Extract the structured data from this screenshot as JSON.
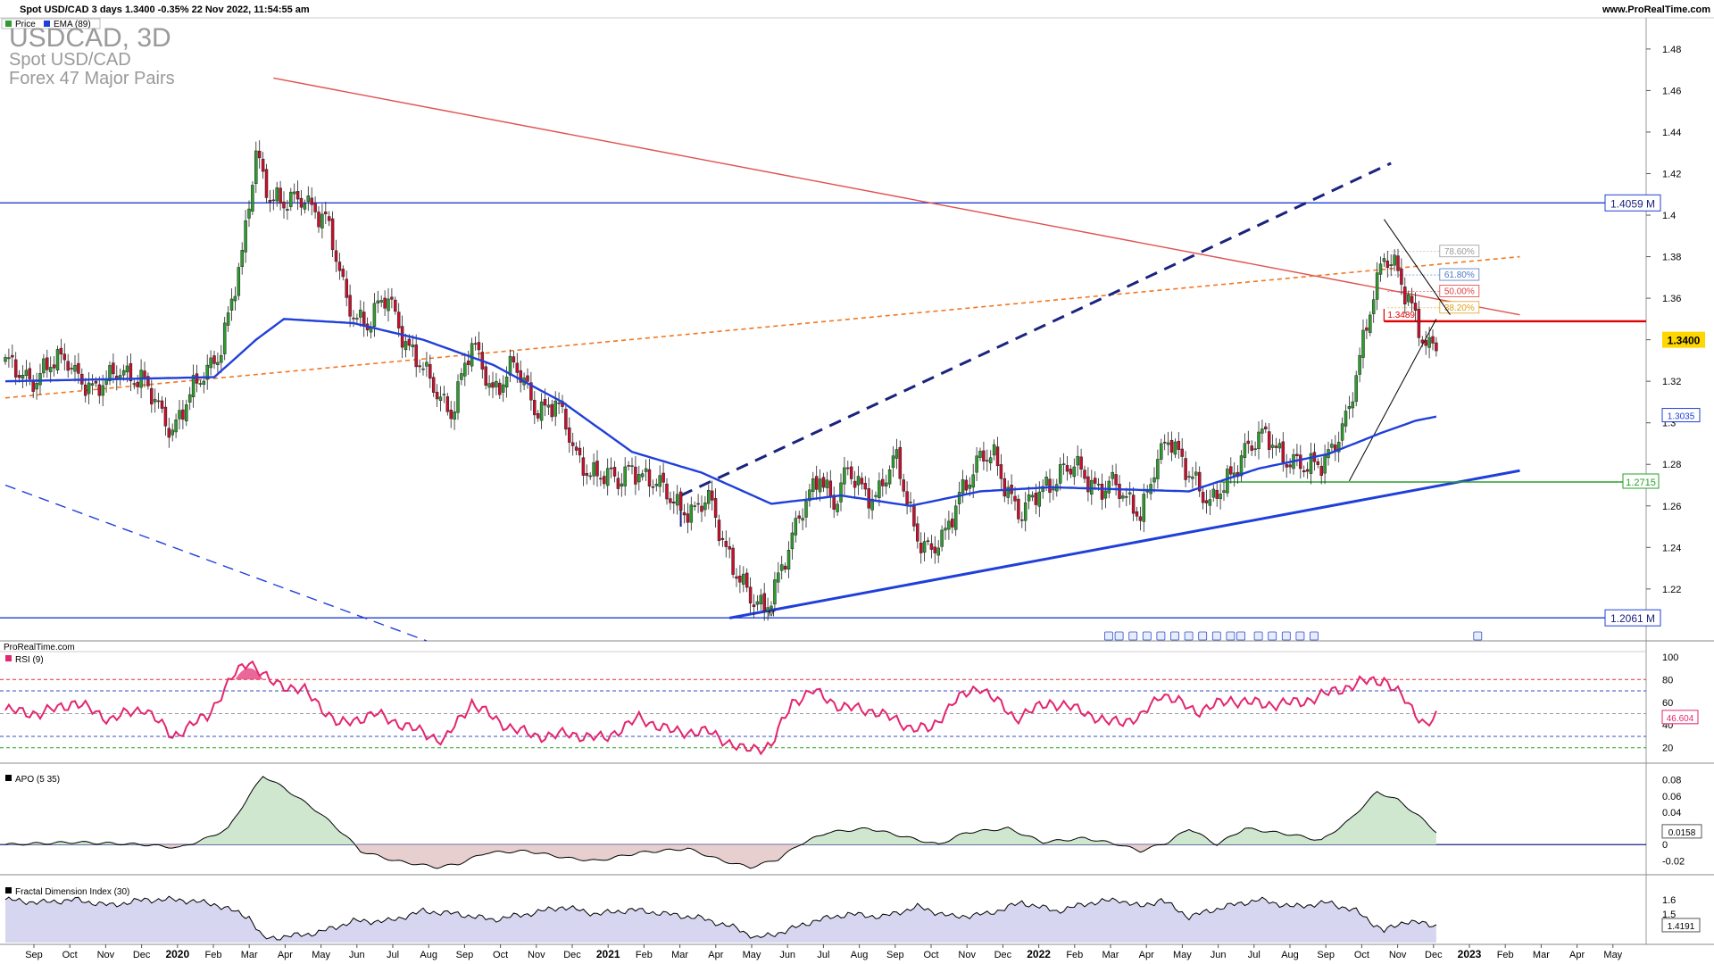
{
  "header": {
    "title": "Spot USD/CAD 3 days 1.3400 -0.35% 22 Nov 2022, 11:54:55 am",
    "website": "www.ProRealTime.com",
    "legend": [
      {
        "label": "Price",
        "color": "#2e9c2e"
      },
      {
        "label": "EMA (89)",
        "color": "#1f3fd9"
      }
    ]
  },
  "watermark": {
    "symbol": "USDCAD, 3D",
    "name": "Spot USD/CAD",
    "group": "Forex 47 Major Pairs"
  },
  "credit": "ProRealTime.com",
  "colors": {
    "up": "#2e9c2e",
    "down": "#c8102e",
    "ema": "#1f3fd9",
    "rsi": "#e3266f",
    "downtrend": "#e05050",
    "orange_dash": "#f07820",
    "channel": "#1a237e",
    "support": "#1f3fd9",
    "target": "#e00000",
    "green_level": "#2aa02a",
    "apo_pos": "#cfe7cf",
    "apo_neg": "#e8cfcf",
    "fdi_fill": "#d6d6f0"
  },
  "x_axis_labels": [
    "Sep",
    "Oct",
    "Nov",
    "Dec",
    "2020",
    "Feb",
    "Mar",
    "Apr",
    "May",
    "Jun",
    "Jul",
    "Aug",
    "Sep",
    "Oct",
    "Nov",
    "Dec",
    "2021",
    "Feb",
    "Mar",
    "Apr",
    "May",
    "Jun",
    "Jul",
    "Aug",
    "Sep",
    "Oct",
    "Nov",
    "Dec",
    "2022",
    "Feb",
    "Mar",
    "Apr",
    "May",
    "Jun",
    "Jul",
    "Aug",
    "Sep",
    "Oct",
    "Nov",
    "Dec",
    "2023",
    "Feb",
    "Mar",
    "Apr",
    "May"
  ],
  "chart_data": [
    {
      "type": "candlestick",
      "ylim": [
        1.195,
        1.495
      ],
      "y_ticks": [
        1.22,
        1.24,
        1.26,
        1.28,
        1.3,
        1.32,
        1.34,
        1.36,
        1.38,
        1.4,
        1.42,
        1.44,
        1.46,
        1.48
      ],
      "y_tick_labels": [
        "1.22",
        "1.24",
        "1.26",
        "1.28",
        "1.3",
        "1.32",
        "1.34",
        "1.36",
        "1.38",
        "1.4",
        "1.42",
        "1.44",
        "1.46",
        "1.48"
      ],
      "price_anchors": [
        [
          0,
          1.327
        ],
        [
          8,
          1.322
        ],
        [
          18,
          1.331
        ],
        [
          26,
          1.313
        ],
        [
          33,
          1.328
        ],
        [
          40,
          1.317
        ],
        [
          48,
          1.298
        ],
        [
          55,
          1.317
        ],
        [
          62,
          1.338
        ],
        [
          68,
          1.378
        ],
        [
          72,
          1.432
        ],
        [
          76,
          1.41
        ],
        [
          80,
          1.403
        ],
        [
          86,
          1.41
        ],
        [
          92,
          1.397
        ],
        [
          98,
          1.359
        ],
        [
          104,
          1.347
        ],
        [
          110,
          1.36
        ],
        [
          116,
          1.337
        ],
        [
          122,
          1.318
        ],
        [
          128,
          1.307
        ],
        [
          134,
          1.336
        ],
        [
          140,
          1.317
        ],
        [
          146,
          1.327
        ],
        [
          152,
          1.308
        ],
        [
          158,
          1.31
        ],
        [
          164,
          1.283
        ],
        [
          170,
          1.276
        ],
        [
          176,
          1.27
        ],
        [
          180,
          1.281
        ],
        [
          186,
          1.27
        ],
        [
          192,
          1.263
        ],
        [
          198,
          1.257
        ],
        [
          202,
          1.262
        ],
        [
          208,
          1.237
        ],
        [
          214,
          1.213
        ],
        [
          218,
          1.21
        ],
        [
          222,
          1.228
        ],
        [
          226,
          1.243
        ],
        [
          230,
          1.261
        ],
        [
          234,
          1.278
        ],
        [
          238,
          1.26
        ],
        [
          242,
          1.275
        ],
        [
          246,
          1.27
        ],
        [
          250,
          1.265
        ],
        [
          256,
          1.281
        ],
        [
          262,
          1.247
        ],
        [
          266,
          1.236
        ],
        [
          270,
          1.245
        ],
        [
          274,
          1.268
        ],
        [
          280,
          1.281
        ],
        [
          284,
          1.283
        ],
        [
          288,
          1.269
        ],
        [
          292,
          1.255
        ],
        [
          298,
          1.268
        ],
        [
          304,
          1.279
        ],
        [
          308,
          1.276
        ],
        [
          312,
          1.27
        ],
        [
          318,
          1.272
        ],
        [
          322,
          1.26
        ],
        [
          326,
          1.257
        ],
        [
          330,
          1.28
        ],
        [
          334,
          1.29
        ],
        [
          338,
          1.281
        ],
        [
          342,
          1.274
        ],
        [
          346,
          1.259
        ],
        [
          350,
          1.268
        ],
        [
          356,
          1.289
        ],
        [
          362,
          1.292
        ],
        [
          366,
          1.286
        ],
        [
          370,
          1.283
        ],
        [
          374,
          1.276
        ],
        [
          378,
          1.28
        ],
        [
          382,
          1.293
        ],
        [
          386,
          1.305
        ],
        [
          390,
          1.337
        ],
        [
          393,
          1.364
        ],
        [
          396,
          1.383
        ],
        [
          399,
          1.375
        ],
        [
          402,
          1.36
        ],
        [
          405,
          1.351
        ],
        [
          408,
          1.339
        ],
        [
          411,
          1.34
        ]
      ],
      "ema_anchors": [
        [
          0,
          1.32
        ],
        [
          30,
          1.321
        ],
        [
          60,
          1.322
        ],
        [
          72,
          1.34
        ],
        [
          80,
          1.35
        ],
        [
          100,
          1.348
        ],
        [
          120,
          1.34
        ],
        [
          140,
          1.328
        ],
        [
          160,
          1.31
        ],
        [
          180,
          1.286
        ],
        [
          200,
          1.276
        ],
        [
          220,
          1.261
        ],
        [
          240,
          1.265
        ],
        [
          260,
          1.26
        ],
        [
          280,
          1.267
        ],
        [
          300,
          1.269
        ],
        [
          320,
          1.268
        ],
        [
          340,
          1.267
        ],
        [
          360,
          1.278
        ],
        [
          380,
          1.285
        ],
        [
          395,
          1.295
        ],
        [
          405,
          1.301
        ],
        [
          411,
          1.303
        ]
      ],
      "last_price": "1.3400",
      "ema_value": "1.3035",
      "levels": [
        {
          "label": "1.4059 M",
          "value": 1.4059
        },
        {
          "label": "1.2061 M",
          "value": 1.2061
        },
        {
          "label": "1.2715",
          "value": 1.2715
        },
        {
          "label": "1.3489",
          "value": 1.3489
        }
      ],
      "fibonacci": [
        {
          "label": "78.60%",
          "value": 1.3825,
          "color": "#999999"
        },
        {
          "label": "61.80%",
          "value": 1.3712,
          "color": "#4a78c8"
        },
        {
          "label": "50.00%",
          "value": 1.3633,
          "color": "#e04040"
        },
        {
          "label": "38.20%",
          "value": 1.3554,
          "color": "#e0a020"
        }
      ],
      "trendlines": [
        {
          "name": "downtrend",
          "from": [
            77,
            1.466
          ],
          "to": [
            435,
            1.352
          ]
        },
        {
          "name": "orange",
          "from": [
            0,
            1.312
          ],
          "to": [
            435,
            1.38
          ]
        },
        {
          "name": "channel_dashed",
          "from": [
            194,
            1.265
          ],
          "to": [
            398,
            1.425
          ]
        },
        {
          "name": "support",
          "from": [
            208,
            1.206
          ],
          "to": [
            435,
            1.277
          ]
        },
        {
          "name": "lower_dashed",
          "from": [
            0,
            1.27
          ],
          "to": [
            121,
            1.195
          ]
        }
      ],
      "marker": "M"
    },
    {
      "type": "line",
      "title": "RSI (9)",
      "ylim": [
        8,
        103
      ],
      "y_ticks": [
        20,
        40,
        60,
        80,
        100
      ],
      "y_tick_labels": [
        "20",
        "40",
        "60",
        "80",
        "100"
      ],
      "levels": [
        80,
        70,
        50,
        30,
        20
      ],
      "last_value": "46.604",
      "anchors": [
        [
          0,
          53
        ],
        [
          10,
          50
        ],
        [
          20,
          60
        ],
        [
          30,
          45
        ],
        [
          40,
          55
        ],
        [
          48,
          30
        ],
        [
          58,
          48
        ],
        [
          66,
          85
        ],
        [
          70,
          97
        ],
        [
          76,
          78
        ],
        [
          86,
          70
        ],
        [
          96,
          40
        ],
        [
          106,
          50
        ],
        [
          116,
          38
        ],
        [
          126,
          26
        ],
        [
          134,
          60
        ],
        [
          142,
          42
        ],
        [
          152,
          30
        ],
        [
          162,
          32
        ],
        [
          172,
          28
        ],
        [
          182,
          46
        ],
        [
          192,
          34
        ],
        [
          202,
          34
        ],
        [
          212,
          18
        ],
        [
          220,
          22
        ],
        [
          226,
          60
        ],
        [
          232,
          70
        ],
        [
          240,
          56
        ],
        [
          250,
          52
        ],
        [
          260,
          38
        ],
        [
          266,
          36
        ],
        [
          272,
          60
        ],
        [
          280,
          74
        ],
        [
          290,
          46
        ],
        [
          300,
          60
        ],
        [
          310,
          52
        ],
        [
          316,
          42
        ],
        [
          326,
          46
        ],
        [
          332,
          68
        ],
        [
          342,
          52
        ],
        [
          352,
          62
        ],
        [
          362,
          58
        ],
        [
          372,
          60
        ],
        [
          382,
          70
        ],
        [
          390,
          78
        ],
        [
          396,
          80
        ],
        [
          402,
          62
        ],
        [
          408,
          40
        ],
        [
          411,
          46.6
        ]
      ]
    },
    {
      "type": "area",
      "title": "APO (5 35)",
      "ylim": [
        -0.035,
        0.095
      ],
      "y_ticks": [
        -0.02,
        0,
        0.02,
        0.04,
        0.06,
        0.08
      ],
      "y_tick_labels": [
        "-0.02",
        "0",
        "0.02",
        "0.04",
        "0.06",
        "0.08"
      ],
      "last_value": "0.0158",
      "anchors": [
        [
          0,
          0.0
        ],
        [
          20,
          0.003
        ],
        [
          40,
          0.0
        ],
        [
          50,
          -0.004
        ],
        [
          58,
          0.008
        ],
        [
          64,
          0.02
        ],
        [
          70,
          0.06
        ],
        [
          74,
          0.085
        ],
        [
          80,
          0.07
        ],
        [
          90,
          0.04
        ],
        [
          98,
          0.01
        ],
        [
          102,
          -0.008
        ],
        [
          112,
          -0.02
        ],
        [
          124,
          -0.028
        ],
        [
          130,
          -0.024
        ],
        [
          138,
          -0.01
        ],
        [
          150,
          -0.008
        ],
        [
          162,
          -0.017
        ],
        [
          170,
          -0.02
        ],
        [
          182,
          -0.01
        ],
        [
          196,
          -0.005
        ],
        [
          206,
          -0.02
        ],
        [
          214,
          -0.028
        ],
        [
          222,
          -0.018
        ],
        [
          228,
          0.0
        ],
        [
          236,
          0.015
        ],
        [
          248,
          0.02
        ],
        [
          260,
          0.008
        ],
        [
          268,
          0.0
        ],
        [
          276,
          0.015
        ],
        [
          288,
          0.02
        ],
        [
          298,
          0.003
        ],
        [
          310,
          0.008
        ],
        [
          320,
          0.0
        ],
        [
          326,
          -0.008
        ],
        [
          334,
          0.003
        ],
        [
          340,
          0.02
        ],
        [
          348,
          0.0
        ],
        [
          356,
          0.02
        ],
        [
          370,
          0.012
        ],
        [
          378,
          0.005
        ],
        [
          386,
          0.03
        ],
        [
          394,
          0.065
        ],
        [
          400,
          0.055
        ],
        [
          406,
          0.035
        ],
        [
          411,
          0.0158
        ]
      ]
    },
    {
      "type": "area",
      "title": "Fractal Dimension Index (30)",
      "ylim": [
        1.3,
        1.75
      ],
      "y_ticks": [
        1.5,
        1.6
      ],
      "y_tick_labels": [
        "1.5",
        "1.6"
      ],
      "last_value": "1.4191",
      "anchors": [
        [
          0,
          1.6
        ],
        [
          10,
          1.58
        ],
        [
          20,
          1.6
        ],
        [
          30,
          1.56
        ],
        [
          40,
          1.6
        ],
        [
          50,
          1.6
        ],
        [
          60,
          1.57
        ],
        [
          70,
          1.48
        ],
        [
          74,
          1.33
        ],
        [
          80,
          1.34
        ],
        [
          90,
          1.37
        ],
        [
          100,
          1.45
        ],
        [
          110,
          1.45
        ],
        [
          120,
          1.52
        ],
        [
          130,
          1.5
        ],
        [
          140,
          1.46
        ],
        [
          150,
          1.5
        ],
        [
          160,
          1.55
        ],
        [
          170,
          1.5
        ],
        [
          180,
          1.53
        ],
        [
          190,
          1.5
        ],
        [
          200,
          1.47
        ],
        [
          210,
          1.4
        ],
        [
          216,
          1.33
        ],
        [
          224,
          1.38
        ],
        [
          232,
          1.45
        ],
        [
          242,
          1.5
        ],
        [
          252,
          1.48
        ],
        [
          262,
          1.55
        ],
        [
          272,
          1.48
        ],
        [
          282,
          1.5
        ],
        [
          292,
          1.58
        ],
        [
          302,
          1.52
        ],
        [
          312,
          1.58
        ],
        [
          320,
          1.6
        ],
        [
          326,
          1.55
        ],
        [
          332,
          1.6
        ],
        [
          340,
          1.48
        ],
        [
          350,
          1.55
        ],
        [
          360,
          1.6
        ],
        [
          370,
          1.55
        ],
        [
          380,
          1.58
        ],
        [
          388,
          1.52
        ],
        [
          396,
          1.38
        ],
        [
          402,
          1.45
        ],
        [
          411,
          1.42
        ]
      ]
    }
  ]
}
